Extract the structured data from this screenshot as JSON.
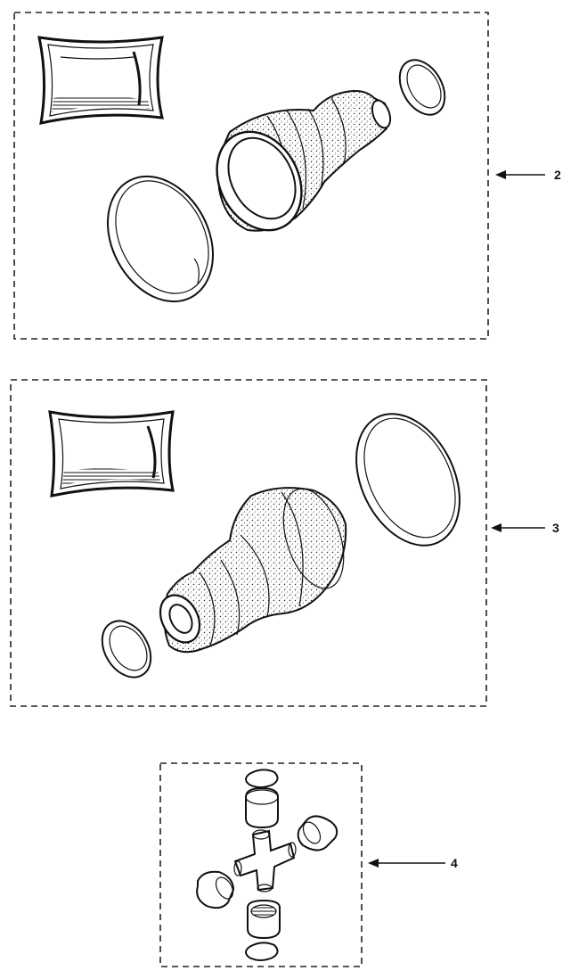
{
  "callouts": [
    {
      "label": "2"
    },
    {
      "label": "3"
    },
    {
      "label": "4"
    }
  ],
  "colors": {
    "ink": "#111111",
    "background": "#ffffff"
  }
}
